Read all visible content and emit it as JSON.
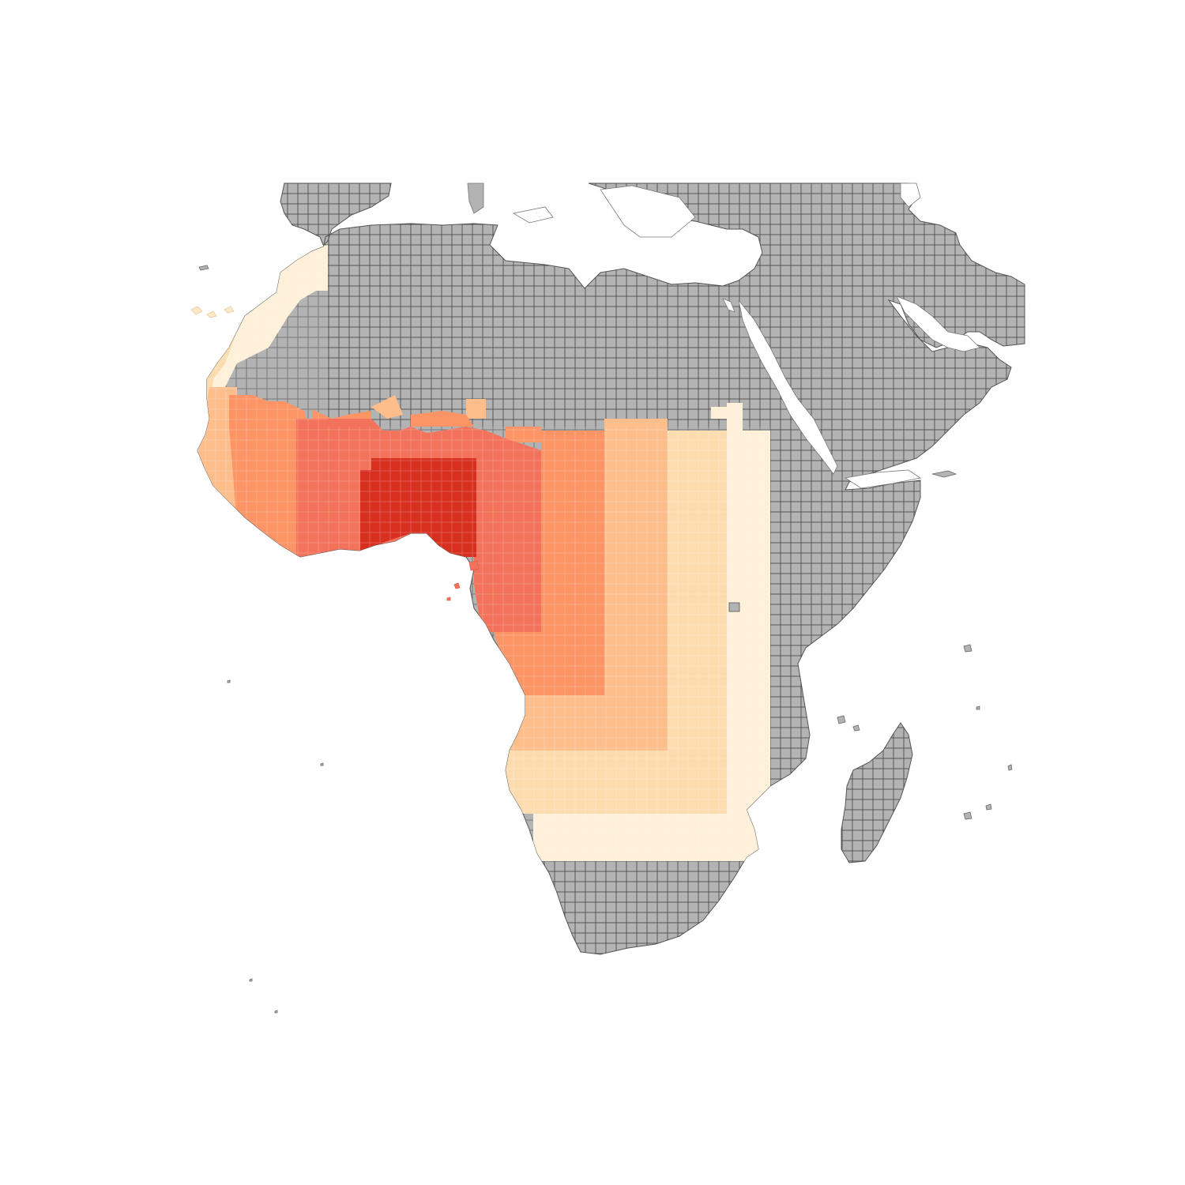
{
  "map": {
    "colors": {
      "land_unfilled": "#b3b3b3",
      "grid_line": "#4d4d4d",
      "background": "#ffffff",
      "classes": [
        "#fff0d9",
        "#fddcb0",
        "#fdbe8c",
        "#fc9465",
        "#f3725b",
        "#d7301f"
      ]
    },
    "legend": null,
    "class_levels": [
      1,
      2,
      3,
      4,
      5,
      6
    ]
  }
}
